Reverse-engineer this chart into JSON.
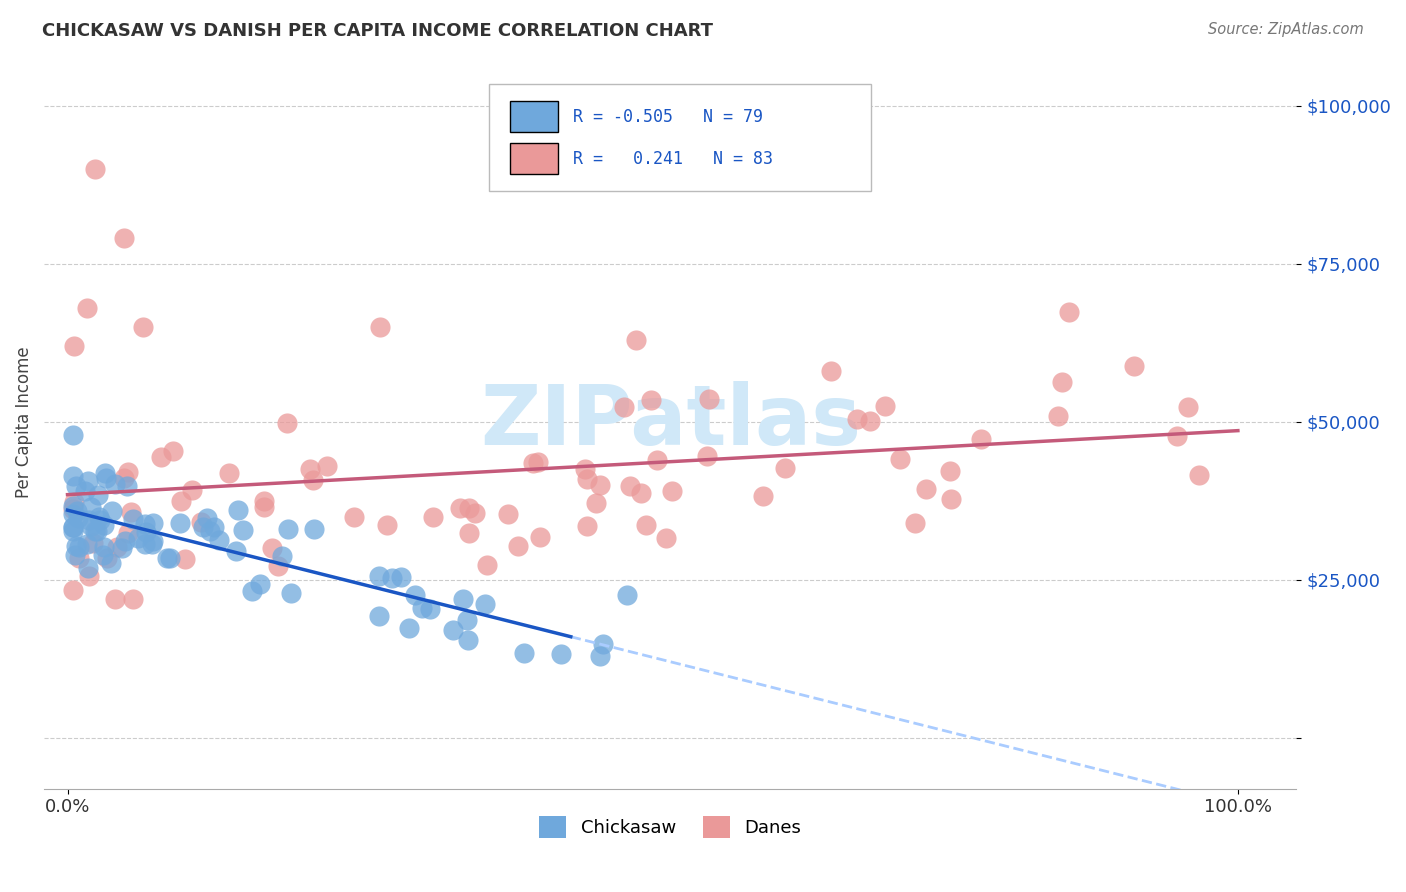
{
  "title": "CHICKASAW VS DANISH PER CAPITA INCOME CORRELATION CHART",
  "source": "Source: ZipAtlas.com",
  "ylabel": "Per Capita Income",
  "ytick_labels": [
    "",
    "$25,000",
    "$50,000",
    "$75,000",
    "$100,000"
  ],
  "ytick_vals": [
    0,
    25000,
    50000,
    75000,
    100000
  ],
  "y_max": 108000,
  "y_min": -8000,
  "x_min": -0.02,
  "x_max": 1.05,
  "chickasaw_R": -0.505,
  "chickasaw_N": 79,
  "danish_R": 0.241,
  "danish_N": 83,
  "chickasaw_color": "#6fa8dc",
  "danish_color": "#ea9999",
  "chickasaw_line_color": "#1a56c4",
  "danish_line_color": "#c45a7a",
  "dashed_line_color": "#aaccff",
  "watermark_color": "#d0e8f8",
  "background_color": "#ffffff",
  "grid_color": "#cccccc",
  "title_color": "#333333",
  "source_color": "#777777",
  "ylabel_color": "#444444",
  "tick_label_color_y": "#1a56c4",
  "tick_label_color_x": "#333333",
  "legend_text_color": "#1a56c4"
}
